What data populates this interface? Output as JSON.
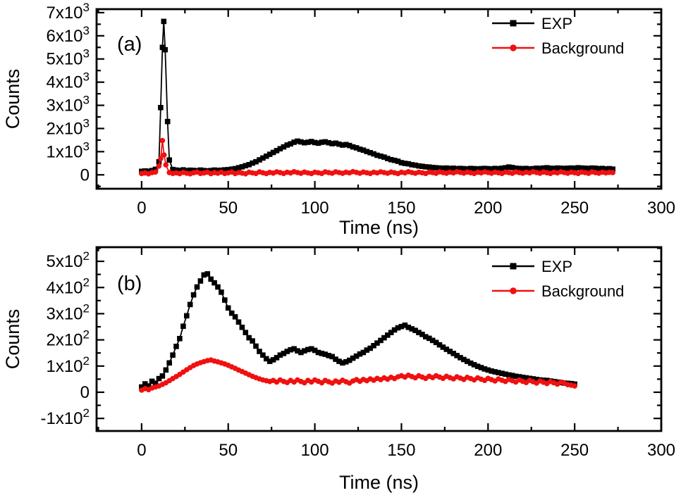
{
  "figure": {
    "background": "#ffffff",
    "text_color": "#000000",
    "series_colors": {
      "exp": "#000000",
      "background": "#f01010"
    }
  },
  "chart_data": [
    {
      "type": "line-scatter",
      "panel_label": "(a)",
      "title": "",
      "xlabel": "Time (ns)",
      "ylabel": "Counts",
      "xlim": [
        -26,
        300
      ],
      "ylim": [
        -600,
        7150
      ],
      "grid": false,
      "x_ticks": {
        "major": [
          0,
          50,
          100,
          150,
          200,
          250,
          300
        ],
        "labels": [
          "0",
          "50",
          "100",
          "150",
          "200",
          "250",
          "300"
        ],
        "minor_step": 25
      },
      "y_ticks": {
        "major": [
          0,
          1000,
          2000,
          3000,
          4000,
          5000,
          6000,
          7000
        ],
        "labels": [
          "0",
          "1x10^3",
          "2x10^3",
          "3x10^3",
          "4x10^3",
          "5x10^3",
          "6x10^3",
          "7x10^3"
        ],
        "minor_step": 500
      },
      "legend": {
        "position": "top-right"
      },
      "series": [
        {
          "name": "EXP",
          "color": "#000000",
          "marker": "square",
          "x": [
            0,
            2,
            4,
            6,
            8,
            10,
            11,
            12,
            12.8,
            13.6,
            15,
            16,
            18,
            20,
            22,
            24,
            26,
            28,
            30,
            32,
            34,
            36,
            38,
            40,
            42,
            44,
            46,
            48,
            50,
            52,
            54,
            56,
            58,
            60,
            62,
            64,
            66,
            68,
            70,
            72,
            74,
            76,
            78,
            80,
            82,
            84,
            86,
            88,
            90,
            92,
            94,
            96,
            98,
            100,
            102,
            104,
            106,
            108,
            110,
            112,
            114,
            116,
            118,
            120,
            122,
            124,
            126,
            128,
            130,
            132,
            134,
            136,
            138,
            140,
            142,
            144,
            146,
            148,
            150,
            152,
            154,
            156,
            158,
            160,
            162,
            164,
            166,
            168,
            170,
            172,
            174,
            176,
            178,
            180,
            182,
            184,
            186,
            188,
            190,
            192,
            194,
            196,
            198,
            200,
            202,
            204,
            206,
            208,
            210,
            212,
            214,
            216,
            218,
            220,
            222,
            224,
            226,
            228,
            230,
            232,
            234,
            236,
            238,
            240,
            242,
            244,
            246,
            248,
            250,
            252,
            254,
            256,
            258,
            260,
            262,
            264,
            266,
            268,
            270,
            272
          ],
          "y": [
            150,
            170,
            155,
            185,
            240,
            560,
            2900,
            5500,
            6620,
            5400,
            2300,
            640,
            230,
            205,
            185,
            215,
            180,
            200,
            190,
            175,
            205,
            185,
            170,
            185,
            205,
            190,
            200,
            215,
            225,
            245,
            265,
            305,
            345,
            395,
            440,
            505,
            565,
            645,
            725,
            805,
            885,
            965,
            1045,
            1125,
            1205,
            1285,
            1335,
            1405,
            1455,
            1420,
            1385,
            1405,
            1435,
            1395,
            1365,
            1405,
            1425,
            1385,
            1345,
            1365,
            1325,
            1285,
            1305,
            1265,
            1205,
            1165,
            1105,
            1065,
            1005,
            955,
            905,
            845,
            805,
            765,
            705,
            655,
            625,
            585,
            525,
            495,
            475,
            435,
            415,
            385,
            365,
            345,
            335,
            315,
            305,
            295,
            285,
            295,
            275,
            285,
            265,
            275,
            265,
            255,
            275,
            265,
            255,
            265,
            275,
            265,
            255,
            275,
            265,
            285,
            305,
            335,
            315,
            285,
            275,
            265,
            275,
            255,
            265,
            285,
            275,
            295,
            305,
            285,
            275,
            295,
            285,
            275,
            285,
            295,
            285,
            305,
            295,
            285,
            275,
            295,
            285,
            265,
            275,
            255,
            265,
            245
          ]
        },
        {
          "name": "Background",
          "color": "#f01010",
          "marker": "circle",
          "x": [
            0,
            2,
            4,
            6,
            8,
            10,
            11,
            12,
            13,
            14,
            16,
            18,
            20,
            22,
            24,
            26,
            28,
            30,
            32,
            34,
            36,
            38,
            40,
            42,
            44,
            46,
            48,
            50,
            52,
            54,
            56,
            58,
            60,
            62,
            64,
            66,
            68,
            70,
            72,
            74,
            76,
            78,
            80,
            82,
            84,
            86,
            88,
            90,
            92,
            94,
            96,
            98,
            100,
            102,
            104,
            106,
            108,
            110,
            112,
            114,
            116,
            118,
            120,
            122,
            124,
            126,
            128,
            130,
            132,
            134,
            136,
            138,
            140,
            142,
            144,
            146,
            148,
            150,
            152,
            154,
            156,
            158,
            160,
            162,
            164,
            166,
            168,
            170,
            172,
            174,
            176,
            178,
            180,
            182,
            184,
            186,
            188,
            190,
            192,
            194,
            196,
            198,
            200,
            202,
            204,
            206,
            208,
            210,
            212,
            214,
            216,
            218,
            220,
            222,
            224,
            226,
            228,
            230,
            232,
            234,
            236,
            238,
            240,
            242,
            244,
            246,
            248,
            250,
            252,
            254,
            256,
            258,
            260,
            262,
            264,
            266,
            268,
            270,
            272
          ],
          "y": [
            55,
            80,
            45,
            95,
            120,
            380,
            700,
            1480,
            860,
            430,
            95,
            60,
            85,
            50,
            105,
            70,
            45,
            90,
            120,
            60,
            80,
            110,
            50,
            95,
            70,
            115,
            60,
            85,
            120,
            55,
            100,
            75,
            45,
            110,
            85,
            60,
            125,
            90,
            55,
            105,
            75,
            130,
            95,
            60,
            110,
            80,
            135,
            100,
            65,
            120,
            85,
            55,
            115,
            90,
            60,
            125,
            95,
            70,
            130,
            100,
            65,
            110,
            85,
            140,
            105,
            70,
            120,
            90,
            60,
            115,
            85,
            130,
            100,
            70,
            120,
            90,
            55,
            110,
            85,
            135,
            100,
            70,
            115,
            90,
            60,
            120,
            95,
            65,
            125,
            95,
            70,
            115,
            85,
            135,
            105,
            75,
            120,
            90,
            60,
            110,
            85,
            130,
            100,
            70,
            115,
            90,
            60,
            120,
            95,
            65,
            125,
            95,
            70,
            115,
            85,
            135,
            100,
            70,
            120,
            90,
            60,
            110,
            85,
            130,
            100,
            70,
            115,
            90,
            60,
            120,
            95,
            65,
            125,
            95,
            70,
            115,
            85,
            105,
            95
          ]
        }
      ]
    },
    {
      "type": "line-scatter",
      "panel_label": "(b)",
      "title": "",
      "xlabel": "Time (ns)",
      "ylabel": "Counts",
      "xlim": [
        -26,
        300
      ],
      "ylim": [
        -148,
        554
      ],
      "grid": false,
      "x_ticks": {
        "major": [
          0,
          50,
          100,
          150,
          200,
          250,
          300
        ],
        "labels": [
          "0",
          "50",
          "100",
          "150",
          "200",
          "250",
          "300"
        ],
        "minor_step": 25
      },
      "y_ticks": {
        "major": [
          -100,
          0,
          100,
          200,
          300,
          400,
          500
        ],
        "labels": [
          "-1x10^2",
          "0",
          "1x10^2",
          "2x10^2",
          "3x10^2",
          "4x10^2",
          "5x10^2"
        ],
        "minor_step": 50
      },
      "legend": {
        "position": "top-right"
      },
      "series": [
        {
          "name": "EXP",
          "color": "#000000",
          "marker": "square",
          "x0": 0,
          "dx": 2,
          "y": [
            20,
            32,
            24,
            42,
            34,
            52,
            62,
            85,
            112,
            142,
            175,
            205,
            252,
            292,
            335,
            372,
            402,
            425,
            448,
            452,
            432,
            418,
            402,
            382,
            352,
            322,
            302,
            288,
            268,
            248,
            228,
            208,
            196,
            176,
            156,
            142,
            128,
            118,
            124,
            132,
            142,
            148,
            156,
            162,
            166,
            158,
            152,
            158,
            163,
            166,
            160,
            152,
            148,
            145,
            140,
            136,
            126,
            118,
            112,
            116,
            122,
            130,
            138,
            146,
            152,
            161,
            168,
            178,
            188,
            198,
            208,
            218,
            228,
            238,
            246,
            251,
            256,
            248,
            242,
            236,
            228,
            221,
            212,
            206,
            198,
            190,
            181,
            172,
            164,
            156,
            148,
            140,
            132,
            125,
            118,
            111,
            105,
            99,
            94,
            89,
            85,
            81,
            78,
            75,
            72,
            69,
            66,
            64,
            61,
            59,
            57,
            55,
            53,
            51,
            49,
            47,
            46,
            45,
            43,
            41,
            39,
            37,
            35,
            34,
            33,
            31
          ]
        },
        {
          "name": "Background",
          "color": "#f01010",
          "marker": "circle",
          "x0": 0,
          "dx": 2,
          "y": [
            8,
            14,
            10,
            16,
            20,
            24,
            30,
            36,
            44,
            52,
            60,
            68,
            77,
            86,
            94,
            102,
            108,
            113,
            117,
            121,
            123,
            119,
            116,
            112,
            108,
            103,
            97,
            91,
            85,
            79,
            73,
            67,
            61,
            56,
            51,
            47,
            44,
            41,
            45,
            39,
            47,
            41,
            37,
            45,
            39,
            47,
            41,
            36,
            45,
            39,
            47,
            42,
            36,
            45,
            40,
            35,
            43,
            38,
            46,
            40,
            35,
            43,
            48,
            42,
            49,
            44,
            51,
            46,
            53,
            48,
            55,
            50,
            57,
            52,
            59,
            63,
            58,
            65,
            60,
            55,
            63,
            58,
            53,
            61,
            56,
            63,
            58,
            53,
            61,
            56,
            51,
            59,
            54,
            49,
            57,
            52,
            47,
            55,
            50,
            45,
            53,
            48,
            43,
            51,
            46,
            41,
            49,
            44,
            39,
            47,
            42,
            37,
            45,
            40,
            35,
            43,
            38,
            33,
            41,
            36,
            31,
            39,
            34,
            29,
            27,
            24
          ]
        }
      ]
    }
  ]
}
